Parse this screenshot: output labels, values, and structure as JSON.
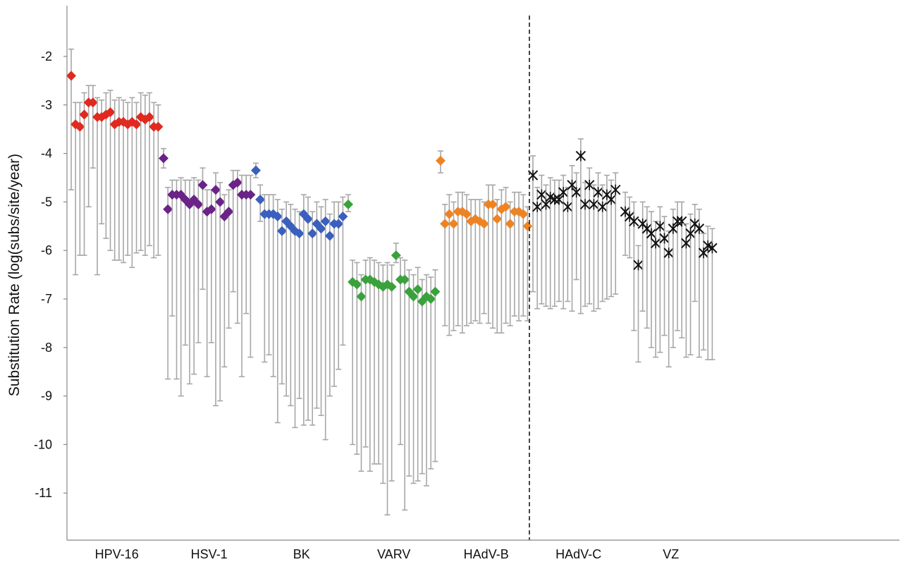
{
  "chart_data": {
    "type": "scatter",
    "title": "",
    "xlabel": "",
    "ylabel": "Substitution Rate (log(subs/site/year)",
    "ylim": [
      -11.9,
      -1.1
    ],
    "yticks": [
      -2,
      -3,
      -4,
      -5,
      -6,
      -7,
      -8,
      -9,
      -10,
      -11
    ],
    "grid": false,
    "legend": "none",
    "divider_after_group": "HAdV-B",
    "groups": [
      {
        "name": "HPV-16",
        "color": "#e0291f",
        "marker": "diamond",
        "points": [
          {
            "y": -2.4,
            "hi": -1.85,
            "lo": -4.75,
            "lead": true
          },
          {
            "y": -3.4,
            "hi": -2.95,
            "lo": -6.5
          },
          {
            "y": -3.45,
            "hi": -2.95,
            "lo": -6.1
          },
          {
            "y": -3.2,
            "hi": -2.75,
            "lo": -6.1
          },
          {
            "y": -2.95,
            "hi": -2.6,
            "lo": -5.1
          },
          {
            "y": -2.95,
            "hi": -2.6,
            "lo": -4.3
          },
          {
            "y": -3.25,
            "hi": -2.85,
            "lo": -6.5
          },
          {
            "y": -3.25,
            "hi": -2.9,
            "lo": -5.45
          },
          {
            "y": -3.2,
            "hi": -2.75,
            "lo": -5.75
          },
          {
            "y": -3.15,
            "hi": -2.7,
            "lo": -6.0
          },
          {
            "y": -3.4,
            "hi": -2.9,
            "lo": -6.2
          },
          {
            "y": -3.35,
            "hi": -2.85,
            "lo": -6.2
          },
          {
            "y": -3.35,
            "hi": -2.9,
            "lo": -6.25
          },
          {
            "y": -3.4,
            "hi": -2.95,
            "lo": -6.1
          },
          {
            "y": -3.35,
            "hi": -2.85,
            "lo": -6.35
          },
          {
            "y": -3.4,
            "hi": -2.95,
            "lo": -6.05
          },
          {
            "y": -3.25,
            "hi": -2.75,
            "lo": -6.0
          },
          {
            "y": -3.3,
            "hi": -2.8,
            "lo": -6.1
          },
          {
            "y": -3.25,
            "hi": -2.75,
            "lo": -5.9
          },
          {
            "y": -3.45,
            "hi": -2.95,
            "lo": -6.15
          },
          {
            "y": -3.45,
            "hi": -3.0,
            "lo": -6.1
          }
        ]
      },
      {
        "name": "HSV-1",
        "color": "#6a2387",
        "marker": "diamond",
        "points": [
          {
            "y": -4.1,
            "hi": -3.9,
            "lo": -4.3,
            "lead": true
          },
          {
            "y": -5.15,
            "hi": -4.7,
            "lo": -8.65
          },
          {
            "y": -4.85,
            "hi": -4.55,
            "lo": -7.35
          },
          {
            "y": -4.85,
            "hi": -4.55,
            "lo": -8.65
          },
          {
            "y": -4.85,
            "hi": -4.5,
            "lo": -9.0
          },
          {
            "y": -4.95,
            "hi": -4.55,
            "lo": -7.95
          },
          {
            "y": -5.05,
            "hi": -4.55,
            "lo": -8.75
          },
          {
            "y": -4.95,
            "hi": -4.5,
            "lo": -8.55
          },
          {
            "y": -5.05,
            "hi": -4.55,
            "lo": -7.9
          },
          {
            "y": -4.65,
            "hi": -4.3,
            "lo": -6.8
          },
          {
            "y": -5.2,
            "hi": -4.75,
            "lo": -8.6
          },
          {
            "y": -5.15,
            "hi": -4.75,
            "lo": -7.9
          },
          {
            "y": -4.75,
            "hi": -4.4,
            "lo": -9.2
          },
          {
            "y": -5.0,
            "hi": -4.6,
            "lo": -9.1
          },
          {
            "y": -5.3,
            "hi": -4.85,
            "lo": -8.4
          },
          {
            "y": -5.2,
            "hi": -4.75,
            "lo": -7.6
          },
          {
            "y": -4.65,
            "hi": -4.35,
            "lo": -6.85
          },
          {
            "y": -4.6,
            "hi": -4.35,
            "lo": -7.5
          },
          {
            "y": -4.85,
            "hi": -4.45,
            "lo": -8.6
          },
          {
            "y": -4.85,
            "hi": -4.45,
            "lo": -7.3
          },
          {
            "y": -4.85,
            "hi": -4.45,
            "lo": -8.2
          }
        ]
      },
      {
        "name": "BK",
        "color": "#3a5fbd",
        "marker": "diamond",
        "points": [
          {
            "y": -4.35,
            "hi": -4.2,
            "lo": -4.5,
            "lead": true
          },
          {
            "y": -4.95,
            "hi": -4.65,
            "lo": -5.4
          },
          {
            "y": -5.25,
            "hi": -4.85,
            "lo": -8.3
          },
          {
            "y": -5.25,
            "hi": -4.85,
            "lo": -8.15
          },
          {
            "y": -5.25,
            "hi": -4.85,
            "lo": -8.6
          },
          {
            "y": -5.3,
            "hi": -4.95,
            "lo": -9.55
          },
          {
            "y": -5.6,
            "hi": -5.15,
            "lo": -8.75
          },
          {
            "y": -5.4,
            "hi": -5.0,
            "lo": -9.0
          },
          {
            "y": -5.5,
            "hi": -5.05,
            "lo": -9.2
          },
          {
            "y": -5.6,
            "hi": -5.15,
            "lo": -9.65
          },
          {
            "y": -5.65,
            "hi": -5.2,
            "lo": -9.05
          },
          {
            "y": -5.25,
            "hi": -4.85,
            "lo": -9.6
          },
          {
            "y": -5.35,
            "hi": -4.9,
            "lo": -9.5
          },
          {
            "y": -5.65,
            "hi": -5.2,
            "lo": -9.6
          },
          {
            "y": -5.45,
            "hi": -5.0,
            "lo": -9.25
          },
          {
            "y": -5.55,
            "hi": -5.1,
            "lo": -9.4
          },
          {
            "y": -5.4,
            "hi": -4.95,
            "lo": -9.9
          },
          {
            "y": -5.7,
            "hi": -5.25,
            "lo": -9.0
          },
          {
            "y": -5.45,
            "hi": -5.0,
            "lo": -8.8
          },
          {
            "y": -5.45,
            "hi": -5.0,
            "lo": -8.45
          },
          {
            "y": -5.3,
            "hi": -4.9,
            "lo": -7.95
          }
        ]
      },
      {
        "name": "VARV",
        "color": "#3aa13c",
        "marker": "diamond",
        "points": [
          {
            "y": -5.05,
            "hi": -4.85,
            "lo": -5.2,
            "lead": true
          },
          {
            "y": -6.65,
            "hi": -6.2,
            "lo": -10.0
          },
          {
            "y": -6.7,
            "hi": -6.25,
            "lo": -10.2
          },
          {
            "y": -6.95,
            "hi": -6.5,
            "lo": -10.55
          },
          {
            "y": -6.6,
            "hi": -6.2,
            "lo": -10.05
          },
          {
            "y": -6.6,
            "hi": -6.15,
            "lo": -10.55
          },
          {
            "y": -6.65,
            "hi": -6.2,
            "lo": -10.4
          },
          {
            "y": -6.7,
            "hi": -6.25,
            "lo": -10.4
          },
          {
            "y": -6.75,
            "hi": -6.3,
            "lo": -10.8
          },
          {
            "y": -6.7,
            "hi": -6.25,
            "lo": -11.45
          },
          {
            "y": -6.75,
            "hi": -6.3,
            "lo": -10.75
          },
          {
            "y": -6.1,
            "hi": -5.85,
            "lo": -6.25
          },
          {
            "y": -6.6,
            "hi": -6.15,
            "lo": -10.0
          },
          {
            "y": -6.6,
            "hi": -6.2,
            "lo": -11.35
          },
          {
            "y": -6.85,
            "hi": -6.4,
            "lo": -10.65
          },
          {
            "y": -6.95,
            "hi": -6.5,
            "lo": -10.8
          },
          {
            "y": -6.8,
            "hi": -6.35,
            "lo": -10.75
          },
          {
            "y": -7.05,
            "hi": -6.6,
            "lo": -10.6
          },
          {
            "y": -6.95,
            "hi": -6.5,
            "lo": -10.85
          },
          {
            "y": -7.0,
            "hi": -6.55,
            "lo": -10.5
          },
          {
            "y": -6.85,
            "hi": -6.4,
            "lo": -10.35
          }
        ]
      },
      {
        "name": "HAdV-B",
        "color": "#ee8324",
        "marker": "diamond",
        "points": [
          {
            "y": -4.15,
            "hi": -3.95,
            "lo": -4.4,
            "lead": true
          },
          {
            "y": -5.45,
            "hi": -5.05,
            "lo": -7.55
          },
          {
            "y": -5.25,
            "hi": -4.85,
            "lo": -7.75
          },
          {
            "y": -5.45,
            "hi": -5.0,
            "lo": -7.65
          },
          {
            "y": -5.2,
            "hi": -4.8,
            "lo": -7.55
          },
          {
            "y": -5.2,
            "hi": -4.8,
            "lo": -7.7
          },
          {
            "y": -5.25,
            "hi": -4.85,
            "lo": -7.55
          },
          {
            "y": -5.4,
            "hi": -4.95,
            "lo": -7.5
          },
          {
            "y": -5.35,
            "hi": -4.95,
            "lo": -7.45
          },
          {
            "y": -5.4,
            "hi": -4.95,
            "lo": -7.5
          },
          {
            "y": -5.45,
            "hi": -5.0,
            "lo": -7.3
          },
          {
            "y": -5.05,
            "hi": -4.65,
            "lo": -7.5
          },
          {
            "y": -5.05,
            "hi": -4.65,
            "lo": -7.6
          },
          {
            "y": -5.35,
            "hi": -4.95,
            "lo": -7.7
          },
          {
            "y": -5.15,
            "hi": -4.75,
            "lo": -7.7
          },
          {
            "y": -5.1,
            "hi": -4.7,
            "lo": -7.5
          },
          {
            "y": -5.45,
            "hi": -5.0,
            "lo": -7.55
          },
          {
            "y": -5.2,
            "hi": -4.8,
            "lo": -7.35
          },
          {
            "y": -5.2,
            "hi": -4.8,
            "lo": -7.45
          },
          {
            "y": -5.25,
            "hi": -4.85,
            "lo": -7.35
          },
          {
            "y": -5.5,
            "hi": -5.1,
            "lo": -7.45
          }
        ]
      },
      {
        "name": "HAdV-C",
        "color": "#111111",
        "marker": "asterisk",
        "points": [
          {
            "y": -4.45,
            "hi": -4.05,
            "lo": -6.85
          },
          {
            "y": -5.1,
            "hi": -4.7,
            "lo": -7.2
          },
          {
            "y": -4.85,
            "hi": -4.45,
            "lo": -7.1
          },
          {
            "y": -5.05,
            "hi": -4.65,
            "lo": -7.15
          },
          {
            "y": -4.9,
            "hi": -4.5,
            "lo": -7.2
          },
          {
            "y": -4.95,
            "hi": -4.55,
            "lo": -7.15
          },
          {
            "y": -4.95,
            "hi": -4.55,
            "lo": -7.05
          },
          {
            "y": -4.8,
            "hi": -4.45,
            "lo": -7.2
          },
          {
            "y": -5.1,
            "hi": -4.7,
            "lo": -7.05
          },
          {
            "y": -4.65,
            "hi": -4.25,
            "lo": -7.25
          },
          {
            "y": -4.8,
            "hi": -4.4,
            "lo": -6.6
          },
          {
            "y": -4.05,
            "hi": -3.7,
            "lo": -7.3
          },
          {
            "y": -5.05,
            "hi": -4.6,
            "lo": -7.15
          },
          {
            "y": -4.65,
            "hi": -4.3,
            "lo": -7.1
          },
          {
            "y": -5.05,
            "hi": -4.65,
            "lo": -7.25
          },
          {
            "y": -4.8,
            "hi": -4.4,
            "lo": -7.2
          },
          {
            "y": -5.1,
            "hi": -4.65,
            "lo": -7.05
          },
          {
            "y": -4.85,
            "hi": -4.45,
            "lo": -7.0
          },
          {
            "y": -4.95,
            "hi": -4.55,
            "lo": -6.95
          },
          {
            "y": -4.75,
            "hi": -4.4,
            "lo": -6.9
          }
        ]
      },
      {
        "name": "VZ",
        "color": "#111111",
        "marker": "asterisk",
        "points": [
          {
            "y": -5.2,
            "hi": -4.8,
            "lo": -6.1
          },
          {
            "y": -5.3,
            "hi": -4.9,
            "lo": -6.15
          },
          {
            "y": -5.4,
            "hi": -5.0,
            "lo": -7.65
          },
          {
            "y": -6.3,
            "hi": -5.9,
            "lo": -8.3
          },
          {
            "y": -5.45,
            "hi": -5.0,
            "lo": -7.25
          },
          {
            "y": -5.55,
            "hi": -5.1,
            "lo": -7.6
          },
          {
            "y": -5.65,
            "hi": -5.2,
            "lo": -8.0
          },
          {
            "y": -5.85,
            "hi": -5.4,
            "lo": -8.2
          },
          {
            "y": -5.5,
            "hi": -5.1,
            "lo": -8.1
          },
          {
            "y": -5.75,
            "hi": -5.3,
            "lo": -7.75
          },
          {
            "y": -6.05,
            "hi": -5.6,
            "lo": -8.4
          },
          {
            "y": -5.55,
            "hi": -5.15,
            "lo": -8.0
          },
          {
            "y": -5.4,
            "hi": -5.0,
            "lo": -7.65
          },
          {
            "y": -5.4,
            "hi": -5.0,
            "lo": -7.8
          },
          {
            "y": -5.85,
            "hi": -5.45,
            "lo": -8.2
          },
          {
            "y": -5.65,
            "hi": -5.25,
            "lo": -8.15
          },
          {
            "y": -5.45,
            "hi": -5.05,
            "lo": -7.05
          },
          {
            "y": -5.55,
            "hi": -5.15,
            "lo": -8.2
          },
          {
            "y": -6.05,
            "hi": -5.65,
            "lo": -8.05
          },
          {
            "y": -5.9,
            "hi": -5.5,
            "lo": -8.25
          },
          {
            "y": -5.95,
            "hi": -5.55,
            "lo": -8.25
          }
        ]
      }
    ]
  }
}
